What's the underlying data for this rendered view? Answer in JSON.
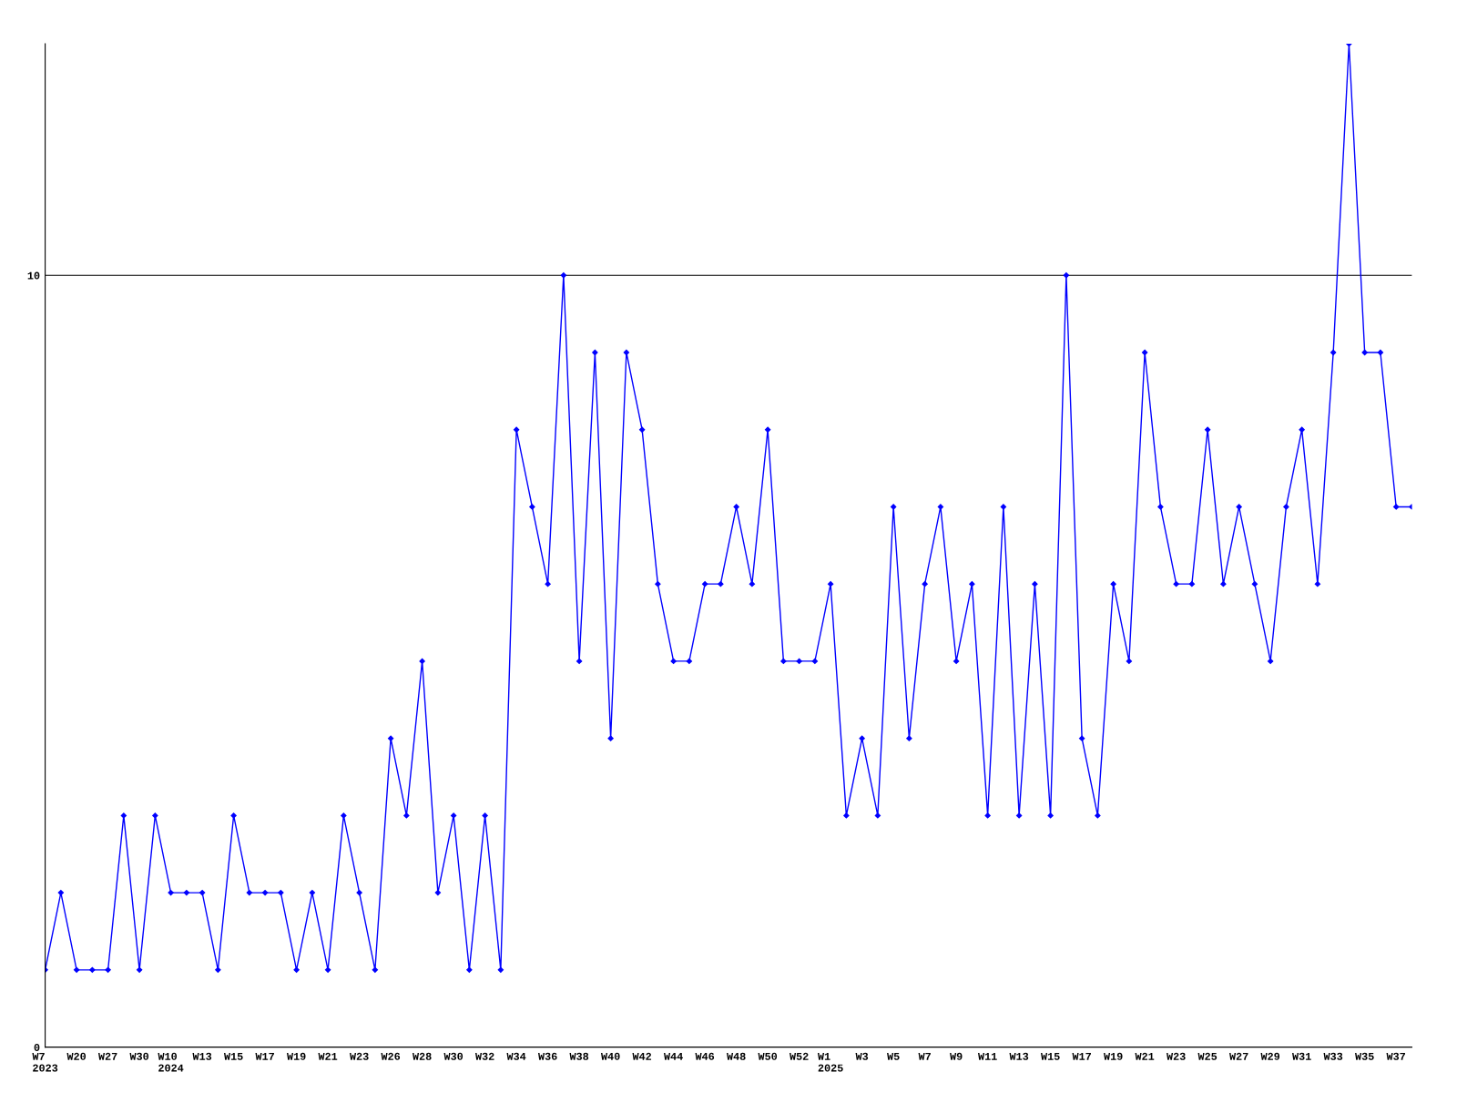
{
  "chart_data": {
    "type": "line",
    "categories": [
      "W7\n2023",
      null,
      "W20",
      null,
      "W27",
      null,
      "W30",
      null,
      "W10\n2024",
      null,
      "W13",
      null,
      "W15",
      null,
      "W17",
      null,
      "W19",
      null,
      "W21",
      null,
      "W23",
      null,
      "W26",
      null,
      "W28",
      null,
      "W30",
      null,
      "W32",
      null,
      "W34",
      null,
      "W36",
      null,
      "W38",
      null,
      "W40",
      null,
      "W42",
      null,
      "W44",
      null,
      "W46",
      null,
      "W48",
      null,
      "W50",
      null,
      "W52",
      null,
      "W1\n2025",
      null,
      "W3",
      null,
      "W5",
      null,
      "W7",
      null,
      "W9",
      null,
      "W11",
      null,
      "W13",
      null,
      "W15",
      null,
      "W17",
      null,
      "W19",
      null,
      "W21",
      null,
      "W23",
      null,
      "W25",
      null,
      "W27",
      null,
      "W29",
      null,
      "W31",
      null,
      "W33",
      null,
      "W35",
      null,
      "W37",
      null
    ],
    "series": [
      {
        "color": "#0000ff",
        "values": [
          1,
          2,
          1,
          1,
          1,
          3,
          1,
          3,
          2,
          2,
          2,
          1,
          3,
          2,
          2,
          2,
          1,
          2,
          1,
          3,
          2,
          1,
          4,
          3,
          5,
          2,
          3,
          1,
          3,
          1,
          8,
          7,
          6,
          10,
          5,
          9,
          4,
          9,
          8,
          6,
          5,
          5,
          6,
          6,
          7,
          6,
          8,
          5,
          5,
          5,
          6,
          3,
          4,
          3,
          7,
          4,
          6,
          7,
          5,
          6,
          3,
          7,
          3,
          6,
          3,
          10,
          4,
          3,
          6,
          5,
          9,
          7,
          6,
          6,
          8,
          6,
          7,
          6,
          5,
          7,
          8,
          6,
          9,
          13,
          9,
          9,
          7,
          7
        ]
      }
    ],
    "ylim": [
      0,
      13
    ],
    "yticks": [
      0,
      10
    ],
    "grid": "y",
    "marker": "diamond",
    "line_style": "solid"
  }
}
